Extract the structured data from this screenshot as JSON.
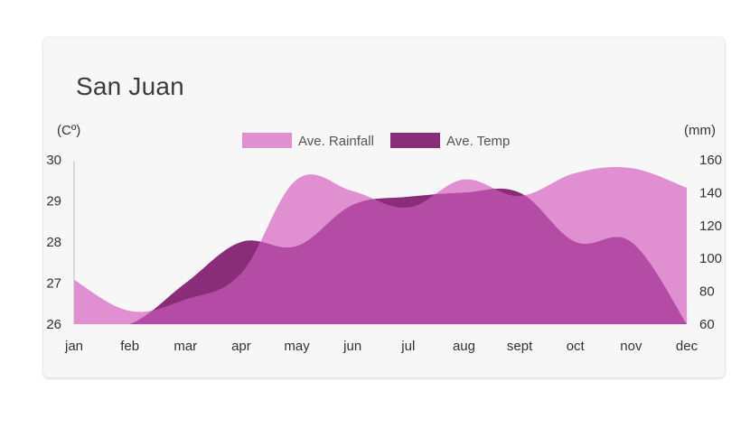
{
  "chart_data": {
    "type": "area",
    "title": "San Juan",
    "categories": [
      "jan",
      "feb",
      "mar",
      "apr",
      "may",
      "jun",
      "jul",
      "aug",
      "sept",
      "oct",
      "nov",
      "dec"
    ],
    "y_left": {
      "label": "(Cº)",
      "ticks": [
        "26",
        "27",
        "28",
        "29",
        "30"
      ],
      "range": [
        26,
        30
      ]
    },
    "y_right": {
      "label": "(mm)",
      "ticks": [
        "60",
        "80",
        "100",
        "120",
        "140",
        "160"
      ],
      "range": [
        60,
        160
      ]
    },
    "series": [
      {
        "name": "Ave. Rainfall",
        "axis": "right",
        "color": "#e090d0",
        "values": [
          87,
          68,
          75,
          91,
          148,
          141,
          131,
          148,
          138,
          152,
          155,
          143
        ]
      },
      {
        "name": "Ave. Temp",
        "axis": "left",
        "color": "#8a2d78",
        "values": [
          26.0,
          26.0,
          27.0,
          28.0,
          27.9,
          28.9,
          29.1,
          29.2,
          29.2,
          28.0,
          28.0,
          26.0
        ]
      }
    ],
    "overlap_color": "#b44ca6",
    "legend_position": "top-center",
    "grid": false
  }
}
